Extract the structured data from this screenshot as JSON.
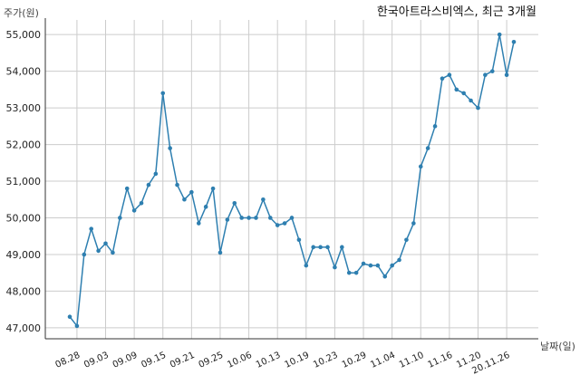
{
  "chart_data": {
    "type": "line",
    "title": "한국아트라스비엑스, 최근 3개월",
    "ylabel": "주가(원)",
    "xlabel": "날짜(일)",
    "ylim": [
      46700,
      55400
    ],
    "yticks": [
      47000,
      48000,
      49000,
      50000,
      51000,
      52000,
      53000,
      54000,
      55000
    ],
    "ytick_labels": [
      "47,000",
      "48,000",
      "49,000",
      "50,000",
      "51,000",
      "52,000",
      "53,000",
      "54,000",
      "55,000"
    ],
    "xtick_labels": [
      "08.28",
      "09.03",
      "09.09",
      "09.15",
      "09.21",
      "09.25",
      "10.06",
      "10.13",
      "10.19",
      "10.23",
      "10.29",
      "11.04",
      "11.10",
      "11.16",
      "11.20",
      "20.11.26"
    ],
    "xtick_index": [
      1,
      5,
      9,
      13,
      17,
      21,
      25,
      29,
      33,
      37,
      41,
      45,
      49,
      53,
      57,
      61
    ],
    "grid": true,
    "colors": {
      "line": "#2e7fb0",
      "grid": "#cccccc",
      "axis": "#333333"
    },
    "series": [
      {
        "values": [
          47300,
          47050,
          49000,
          49700,
          49100,
          49300,
          49050,
          50000,
          50800,
          50200,
          50400,
          50900,
          51200,
          53400,
          51900,
          50900,
          50500,
          50700,
          49850,
          50300,
          50800,
          49050,
          49950,
          50400,
          50000,
          50000,
          50000,
          50500,
          50000,
          49800,
          49850,
          50000,
          49400,
          48700,
          49200,
          49200,
          49200,
          48650,
          49200,
          48500,
          48500,
          48750,
          48700,
          48700,
          48400,
          48700,
          48850,
          49400,
          49850,
          51400,
          51900,
          52500,
          53800,
          53900,
          53500,
          53400,
          53200,
          53000,
          53900,
          54000,
          55000,
          53900,
          54800
        ]
      }
    ]
  }
}
